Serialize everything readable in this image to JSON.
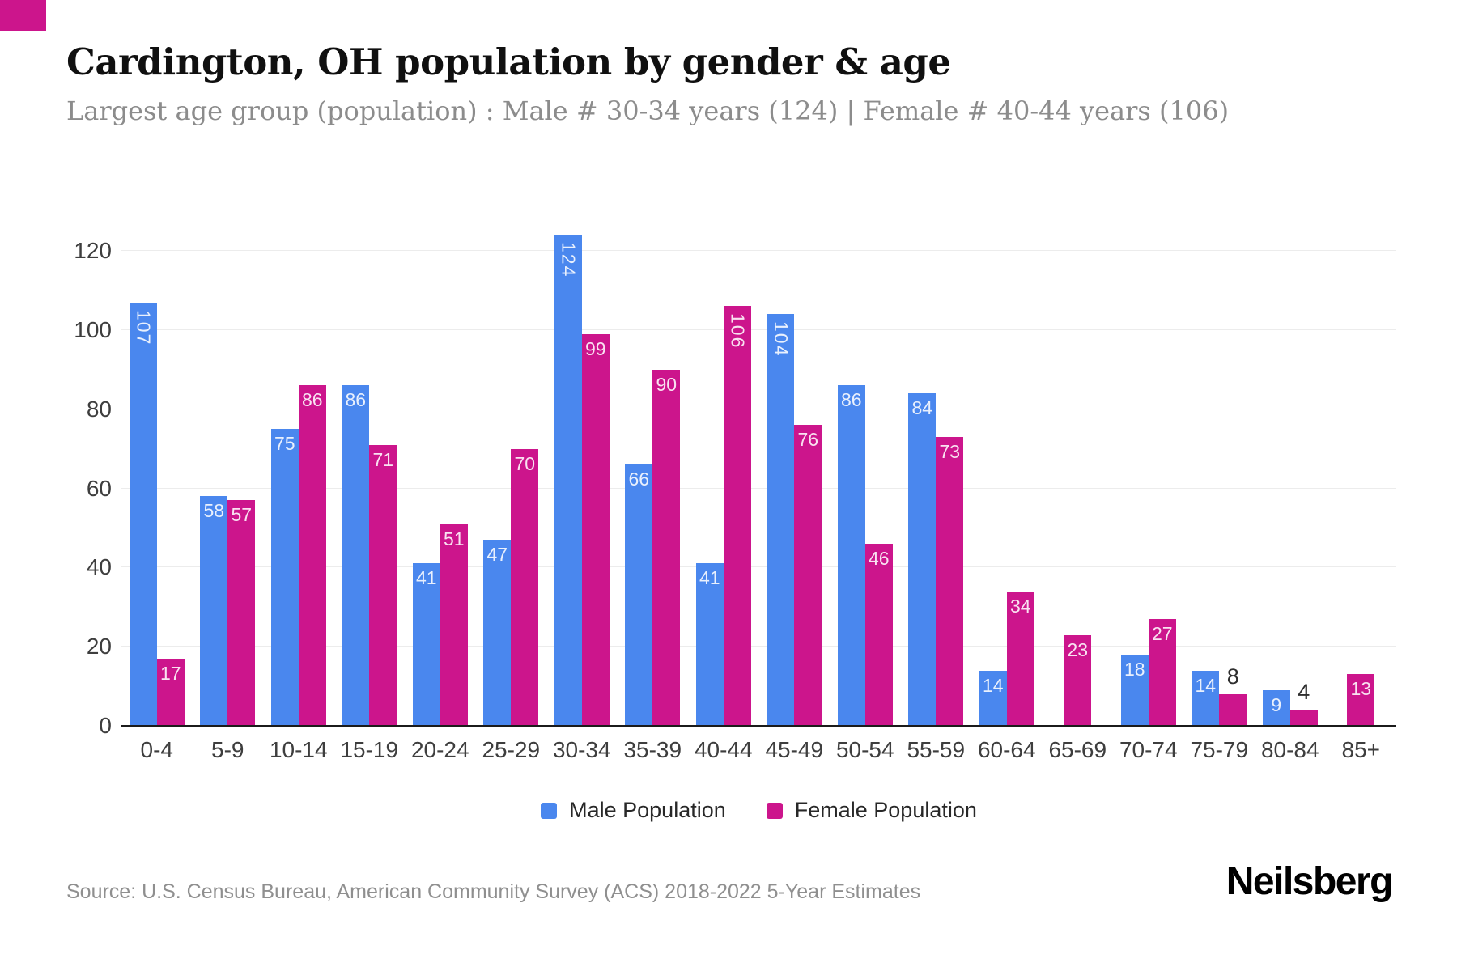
{
  "brand": {
    "logo_text": "Neilsberg",
    "accent_color": "#cc158c"
  },
  "header": {
    "title": "Cardington, OH population by gender & age",
    "subtitle": "Largest age group (population) : Male # 30-34 years (124) | Female # 40-44 years (106)"
  },
  "chart_data": {
    "type": "bar",
    "title": "Cardington, OH population by gender & age",
    "categories": [
      "0-4",
      "5-9",
      "10-14",
      "15-19",
      "20-24",
      "25-29",
      "30-34",
      "35-39",
      "40-44",
      "45-49",
      "50-54",
      "55-59",
      "60-64",
      "65-69",
      "70-74",
      "75-79",
      "80-84",
      "85+"
    ],
    "series": [
      {
        "name": "Male Population",
        "color": "#4a87ee",
        "values": [
          107,
          58,
          75,
          86,
          41,
          47,
          124,
          66,
          41,
          104,
          86,
          84,
          14,
          0,
          18,
          14,
          9,
          0
        ]
      },
      {
        "name": "Female Population",
        "color": "#cc158c",
        "values": [
          17,
          57,
          86,
          71,
          51,
          70,
          99,
          90,
          106,
          76,
          46,
          73,
          34,
          23,
          27,
          8,
          4,
          13
        ]
      }
    ],
    "xlabel": "",
    "ylabel": "",
    "yticks": [
      0,
      20,
      40,
      60,
      80,
      100,
      120
    ],
    "ylim": [
      0,
      120
    ],
    "grid": true,
    "legend_position": "bottom",
    "value_labels": "shown on bars; white inside bar, rotated vertical when value >= 100, dark above bar when value <= 8"
  },
  "footer": {
    "source": "Source: U.S. Census Bureau, American Community Survey (ACS) 2018-2022 5-Year Estimates"
  }
}
